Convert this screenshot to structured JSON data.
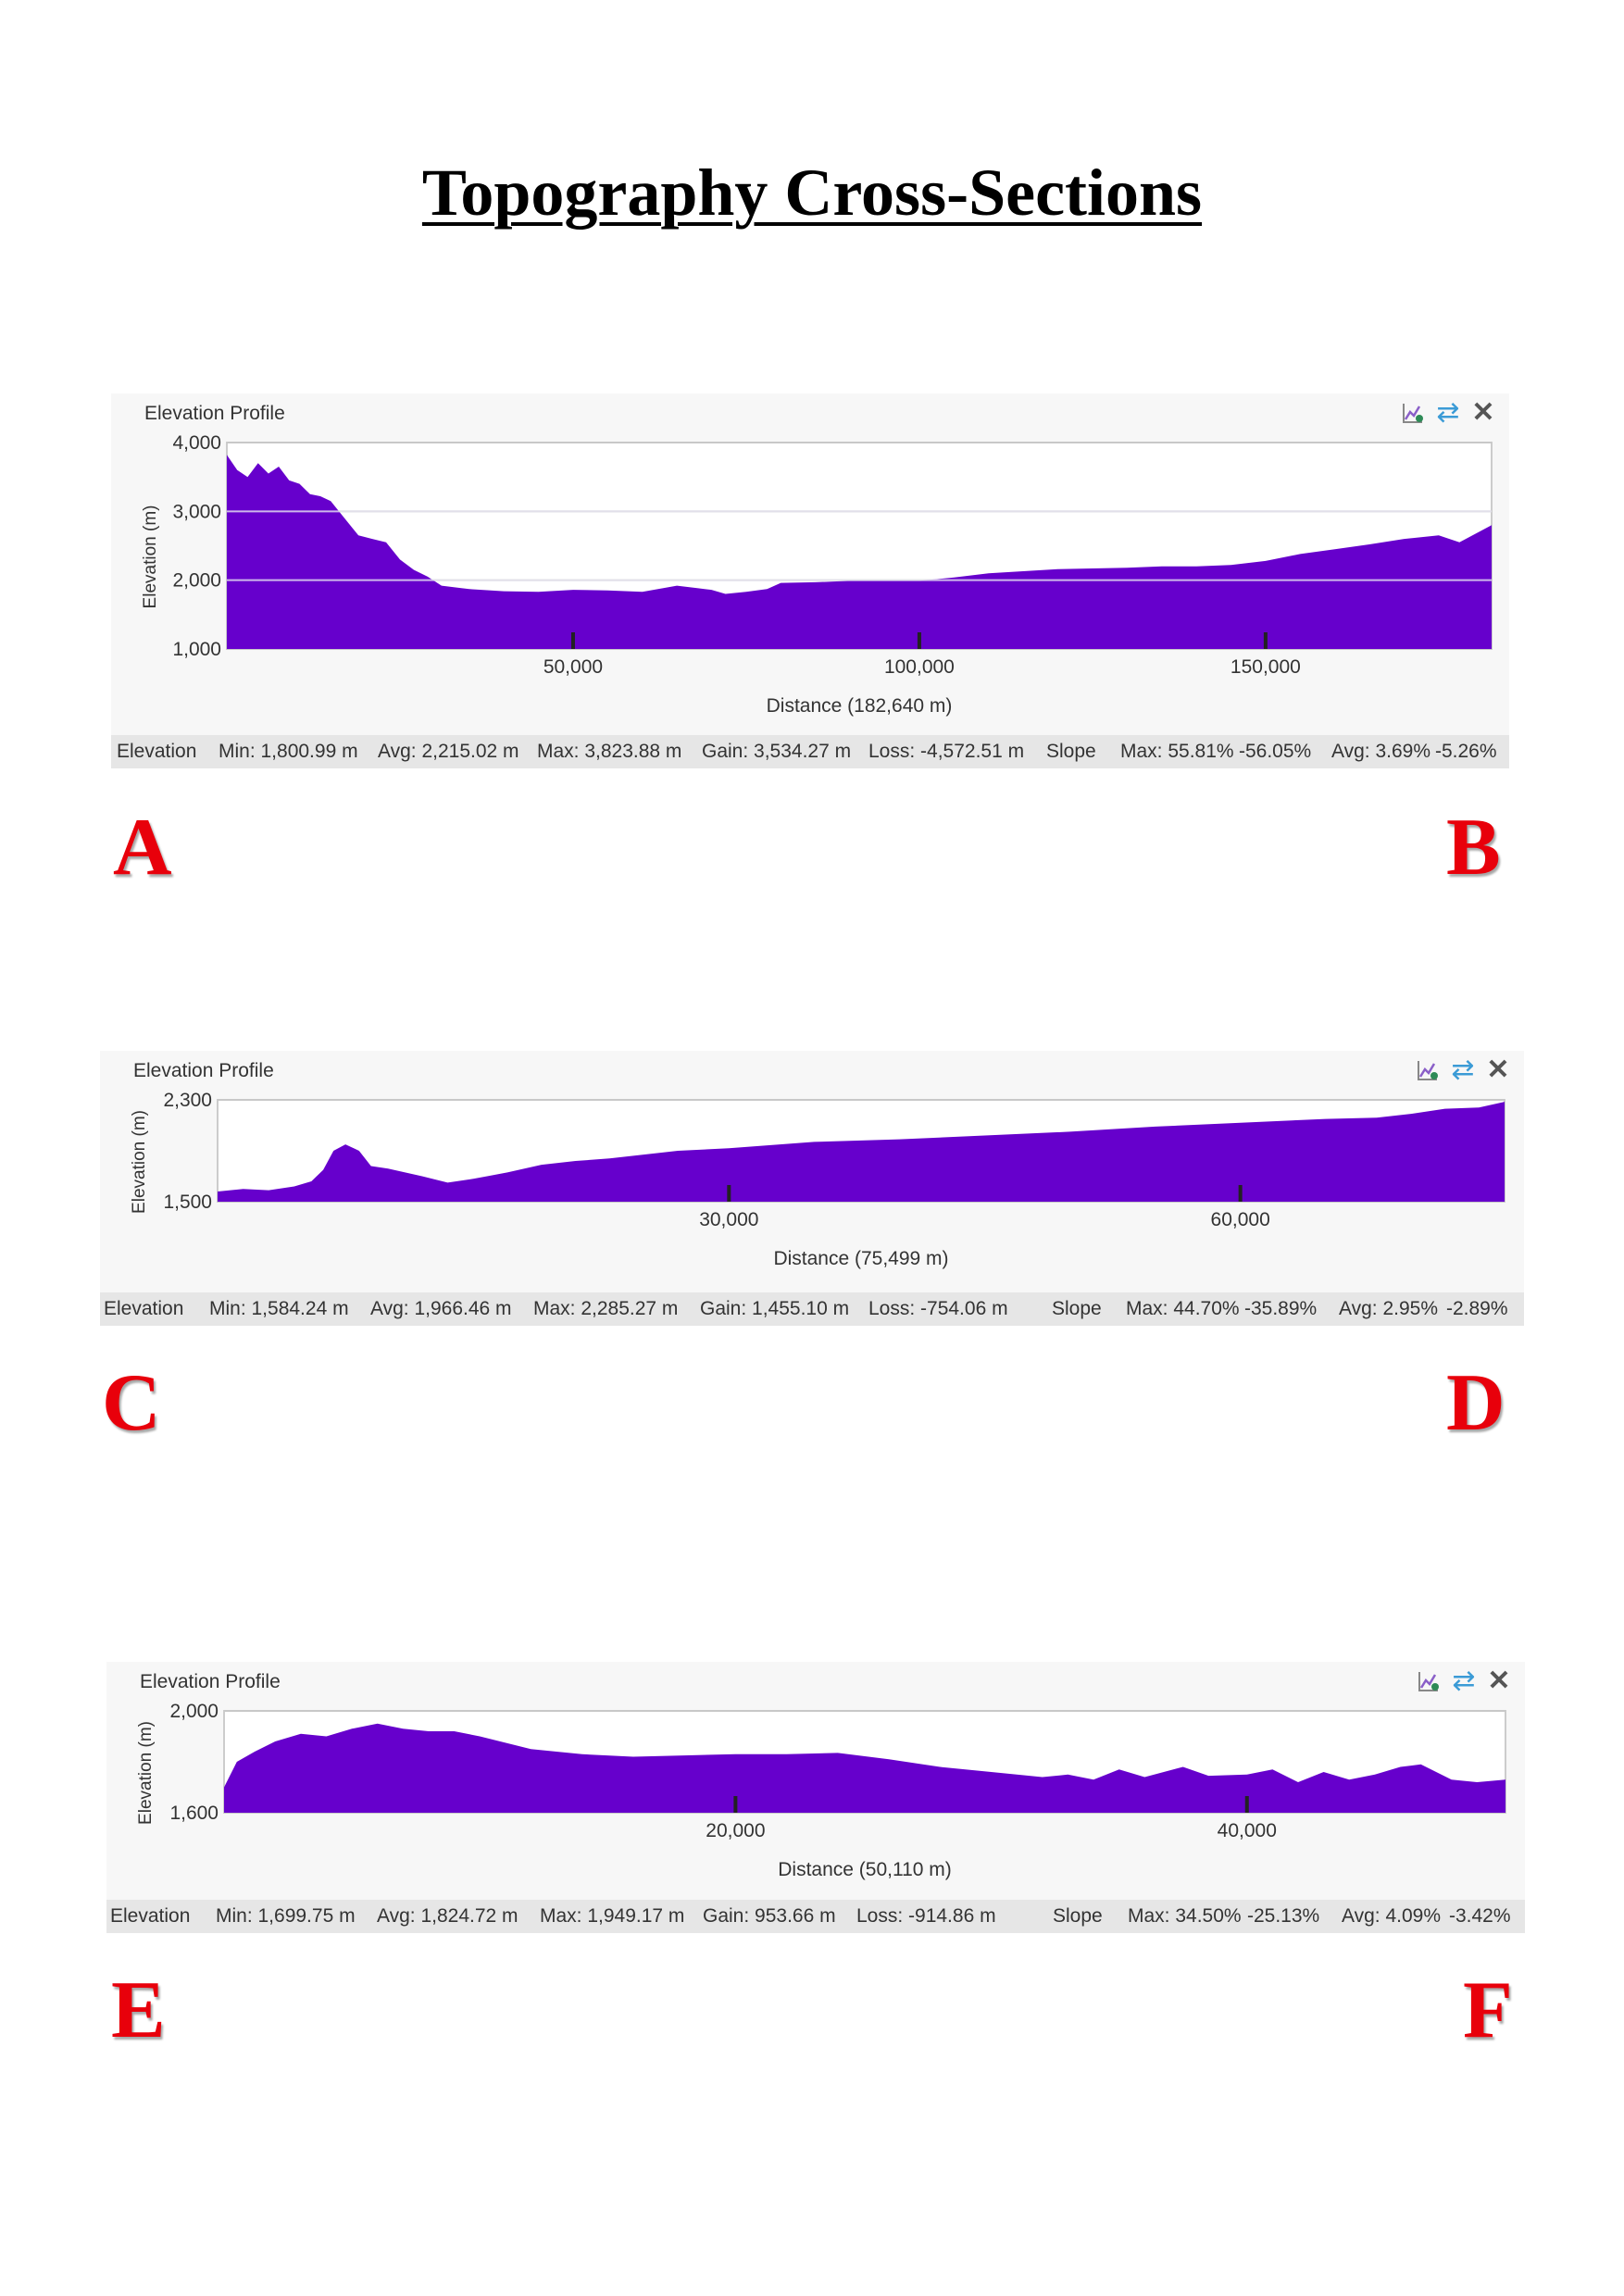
{
  "document": {
    "title": "Topography Cross-Sections"
  },
  "colors": {
    "fill": "#6600cc",
    "panel_bg": "#f7f7f7",
    "stats_bg": "#e6e6e6",
    "gridline": "#c8c8c8",
    "letter": "#e8000b"
  },
  "icons": [
    "chart-export-icon",
    "swap-direction-icon",
    "close-icon"
  ],
  "profiles": [
    {
      "title": "Elevation Profile",
      "start_label": "A",
      "end_label": "B",
      "stats": {
        "label": "Elevation",
        "min": "Min: 1,800.99 m",
        "avg": "Avg: 2,215.02 m",
        "max": "Max: 3,823.88 m",
        "gain": "Gain: 3,534.27 m",
        "loss": "Loss: -4,572.51 m",
        "slope_label": "Slope",
        "slope_max": "Max: 55.81%",
        "slope_min": "-56.05%",
        "slope_avg": "Avg: 3.69%",
        "slope_avg_neg": "-5.26%"
      }
    },
    {
      "title": "Elevation Profile",
      "start_label": "C",
      "end_label": "D",
      "stats": {
        "label": "Elevation",
        "min": "Min: 1,584.24 m",
        "avg": "Avg: 1,966.46 m",
        "max": "Max: 2,285.27 m",
        "gain": "Gain: 1,455.10 m",
        "loss": "Loss: -754.06 m",
        "slope_label": "Slope",
        "slope_max": "Max: 44.70%",
        "slope_min": "-35.89%",
        "slope_avg": "Avg: 2.95%",
        "slope_avg_neg": "-2.89%"
      }
    },
    {
      "title": "Elevation Profile",
      "start_label": "E",
      "end_label": "F",
      "stats": {
        "label": "Elevation",
        "min": "Min: 1,699.75 m",
        "avg": "Avg: 1,824.72 m",
        "max": "Max: 1,949.17 m",
        "gain": "Gain: 953.66 m",
        "loss": "Loss: -914.86 m",
        "slope_label": "Slope",
        "slope_max": "Max: 34.50%",
        "slope_min": "-25.13%",
        "slope_avg": "Avg: 4.09%",
        "slope_avg_neg": "-3.42%"
      }
    }
  ],
  "chart_data": [
    {
      "type": "area",
      "ylabel": "Elevation (m)",
      "xlabel": "Distance (182,640 m)",
      "xlim": [
        0,
        182640
      ],
      "ylim": [
        1000,
        4000
      ],
      "yticks": [
        1000,
        2000,
        3000,
        4000
      ],
      "ytick_labels": [
        "1,000",
        "2,000",
        "3,000",
        "4,000"
      ],
      "xticks": [
        50000,
        100000,
        150000
      ],
      "xtick_labels": [
        "50,000",
        "100,000",
        "150,000"
      ],
      "grid": true,
      "x": [
        0,
        1500,
        3000,
        4500,
        6000,
        7500,
        9000,
        10500,
        12000,
        13500,
        15000,
        17000,
        19000,
        21000,
        23000,
        25000,
        27000,
        29000,
        31000,
        35000,
        40000,
        45000,
        50000,
        55000,
        60000,
        65000,
        70000,
        72000,
        75000,
        78000,
        80000,
        85000,
        90000,
        95000,
        100000,
        105000,
        110000,
        115000,
        120000,
        125000,
        130000,
        135000,
        140000,
        145000,
        150000,
        155000,
        160000,
        165000,
        170000,
        175000,
        178000,
        182640
      ],
      "y": [
        3820,
        3600,
        3500,
        3700,
        3550,
        3650,
        3450,
        3400,
        3250,
        3220,
        3150,
        2900,
        2650,
        2600,
        2550,
        2300,
        2150,
        2050,
        1920,
        1870,
        1840,
        1830,
        1860,
        1850,
        1830,
        1920,
        1860,
        1800,
        1830,
        1870,
        1960,
        1970,
        1990,
        1990,
        1990,
        2040,
        2100,
        2130,
        2160,
        2170,
        2180,
        2200,
        2200,
        2220,
        2280,
        2380,
        2450,
        2520,
        2600,
        2650,
        2550,
        2800
      ]
    },
    {
      "type": "area",
      "ylabel": "Elevation (m)",
      "xlabel": "Distance (75,499 m)",
      "xlim": [
        0,
        75499
      ],
      "ylim": [
        1500,
        2300
      ],
      "yticks": [
        1500,
        2300
      ],
      "ytick_labels": [
        "1,500",
        "2,300"
      ],
      "xticks": [
        30000,
        60000
      ],
      "xtick_labels": [
        "30,000",
        "60,000"
      ],
      "grid": true,
      "x": [
        0,
        1500,
        3000,
        4500,
        5500,
        6200,
        6800,
        7500,
        8300,
        9000,
        10000,
        12000,
        13500,
        15000,
        17000,
        19000,
        21000,
        23000,
        25000,
        27000,
        30000,
        35000,
        40000,
        45000,
        50000,
        55000,
        60000,
        65000,
        68000,
        70000,
        72000,
        74000,
        75499
      ],
      "y": [
        1580,
        1600,
        1590,
        1620,
        1660,
        1750,
        1900,
        1950,
        1900,
        1780,
        1760,
        1700,
        1650,
        1680,
        1730,
        1790,
        1820,
        1840,
        1870,
        1900,
        1920,
        1970,
        1990,
        2020,
        2050,
        2090,
        2120,
        2150,
        2160,
        2190,
        2230,
        2240,
        2285
      ]
    },
    {
      "type": "area",
      "ylabel": "Elevation (m)",
      "xlabel": "Distance (50,110 m)",
      "xlim": [
        0,
        50110
      ],
      "ylim": [
        1600,
        2000
      ],
      "yticks": [
        1600,
        2000
      ],
      "ytick_labels": [
        "1,600",
        "2,000"
      ],
      "xticks": [
        20000,
        40000
      ],
      "xtick_labels": [
        "20,000",
        "40,000"
      ],
      "grid": true,
      "x": [
        0,
        500,
        1200,
        2000,
        3000,
        4000,
        5000,
        6000,
        7000,
        8000,
        9000,
        10000,
        12000,
        14000,
        16000,
        18000,
        20000,
        22000,
        24000,
        26000,
        28000,
        30000,
        32000,
        33000,
        34000,
        35000,
        36000,
        37500,
        38500,
        40000,
        41000,
        42000,
        43000,
        44000,
        45000,
        46000,
        46800,
        48000,
        49000,
        50110
      ],
      "y": [
        1700,
        1800,
        1840,
        1880,
        1910,
        1900,
        1930,
        1950,
        1930,
        1920,
        1920,
        1900,
        1850,
        1830,
        1820,
        1825,
        1830,
        1830,
        1835,
        1810,
        1780,
        1760,
        1740,
        1750,
        1730,
        1770,
        1740,
        1780,
        1745,
        1750,
        1770,
        1720,
        1760,
        1730,
        1750,
        1780,
        1790,
        1730,
        1720,
        1730
      ]
    }
  ]
}
